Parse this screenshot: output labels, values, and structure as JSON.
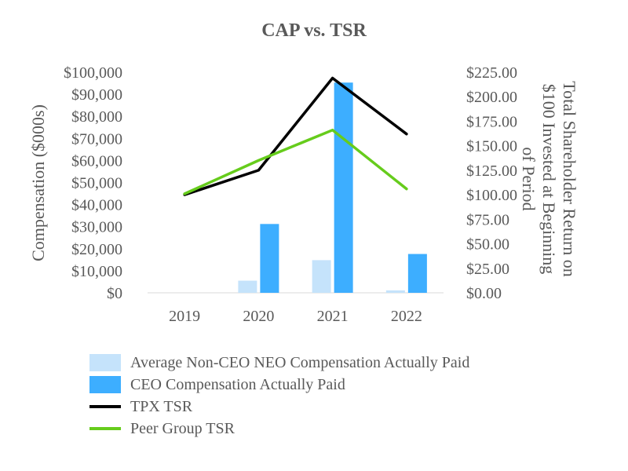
{
  "chart_data": {
    "type": "bar",
    "title": "CAP vs. TSR",
    "categories": [
      "2019",
      "2020",
      "2021",
      "2022"
    ],
    "y_left": {
      "label": "Compensation ($000s)",
      "lim": [
        0,
        100000
      ],
      "ticks": [
        "$0",
        "$10,000",
        "$20,000",
        "$30,000",
        "$40,000",
        "$50,000",
        "$60,000",
        "$70,000",
        "$80,000",
        "$90,000",
        "$100,000"
      ]
    },
    "y_right": {
      "label_lines": [
        "Total Shareholder Return on",
        "$100 Invested at Beginning",
        "of Period"
      ],
      "lim": [
        0,
        225
      ],
      "ticks": [
        "$0.00",
        "$25.00",
        "$50.00",
        "$75.00",
        "$100.00",
        "$125.00",
        "$150.00",
        "$175.00",
        "$200.00",
        "$225.00"
      ]
    },
    "bar_series": [
      {
        "name": "Average Non-CEO NEO Compensation Actually Paid",
        "color": "#c5e3fb",
        "axis": "left",
        "values": [
          null,
          5500,
          14800,
          1100
        ]
      },
      {
        "name": "CEO Compensation Actually Paid",
        "color": "#3daeff",
        "axis": "left",
        "values": [
          null,
          31200,
          95300,
          17600
        ]
      }
    ],
    "line_series": [
      {
        "name": "TPX TSR",
        "color": "#000000",
        "axis": "right",
        "values": [
          100,
          125,
          219,
          162
        ]
      },
      {
        "name": "Peer Group TSR",
        "color": "#66cc1c",
        "axis": "right",
        "values": [
          101,
          135,
          166,
          106
        ]
      }
    ],
    "grid": false,
    "legend_position": "bottom"
  }
}
